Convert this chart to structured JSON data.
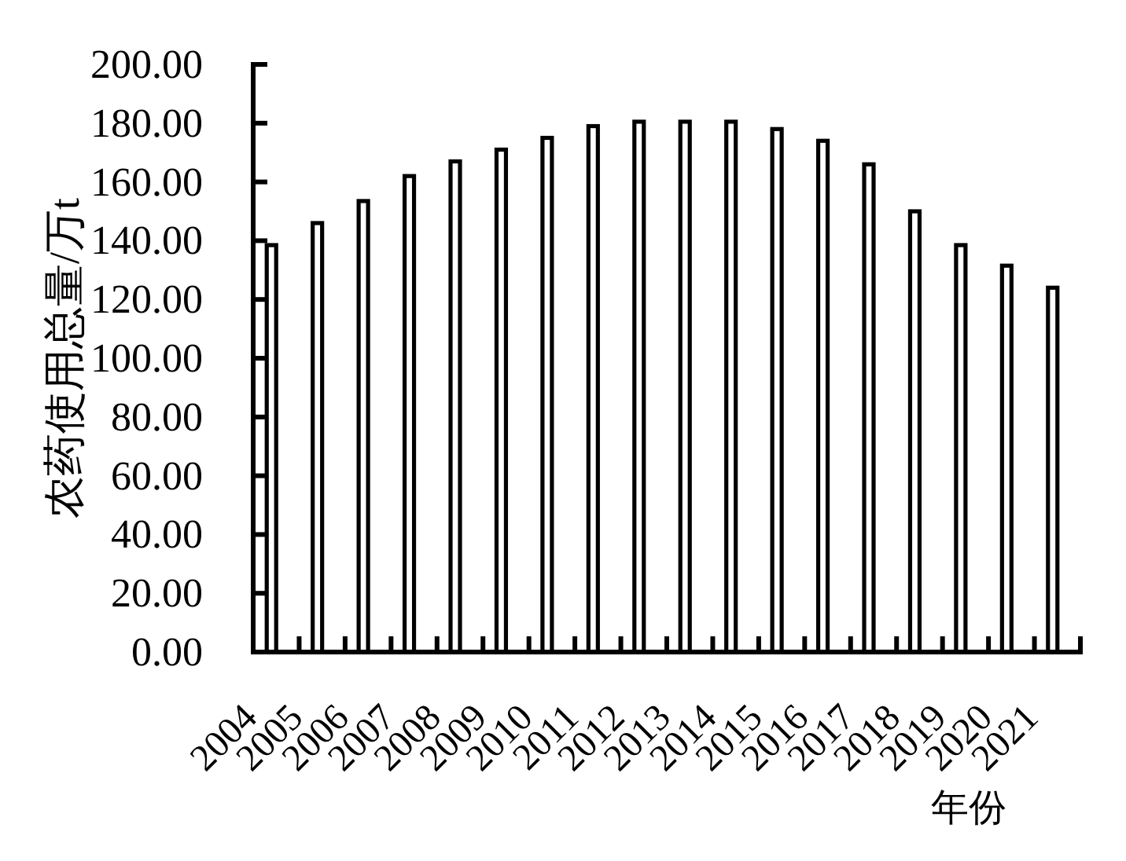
{
  "chart_data": {
    "type": "bar",
    "xlabel": "年份",
    "ylabel": "农药使用总量/万t",
    "categories": [
      "2004",
      "2005",
      "2006",
      "2007",
      "2008",
      "2009",
      "2010",
      "2011",
      "2012",
      "2013",
      "2014",
      "2015",
      "2016",
      "2017",
      "2018",
      "2019",
      "2020",
      "2021"
    ],
    "values": [
      138.5,
      146,
      153.5,
      162,
      167,
      171,
      175,
      179,
      180.5,
      180.5,
      180.5,
      178,
      174,
      166,
      150,
      138.5,
      131.5,
      124
    ],
    "color": "#ffffff",
    "ylim": [
      0,
      200
    ],
    "yticks": [
      {
        "value": 0,
        "label": "0.00"
      },
      {
        "value": 20,
        "label": "20.00"
      },
      {
        "value": 40,
        "label": "40.00"
      },
      {
        "value": 60,
        "label": "60.00"
      },
      {
        "value": 80,
        "label": "80.00"
      },
      {
        "value": 100,
        "label": "100.00"
      },
      {
        "value": 120,
        "label": "120.00"
      },
      {
        "value": 140,
        "label": "140.00"
      },
      {
        "value": 160,
        "label": "160.00"
      },
      {
        "value": 180,
        "label": "180.00"
      },
      {
        "value": 200,
        "label": "200.00"
      }
    ]
  }
}
